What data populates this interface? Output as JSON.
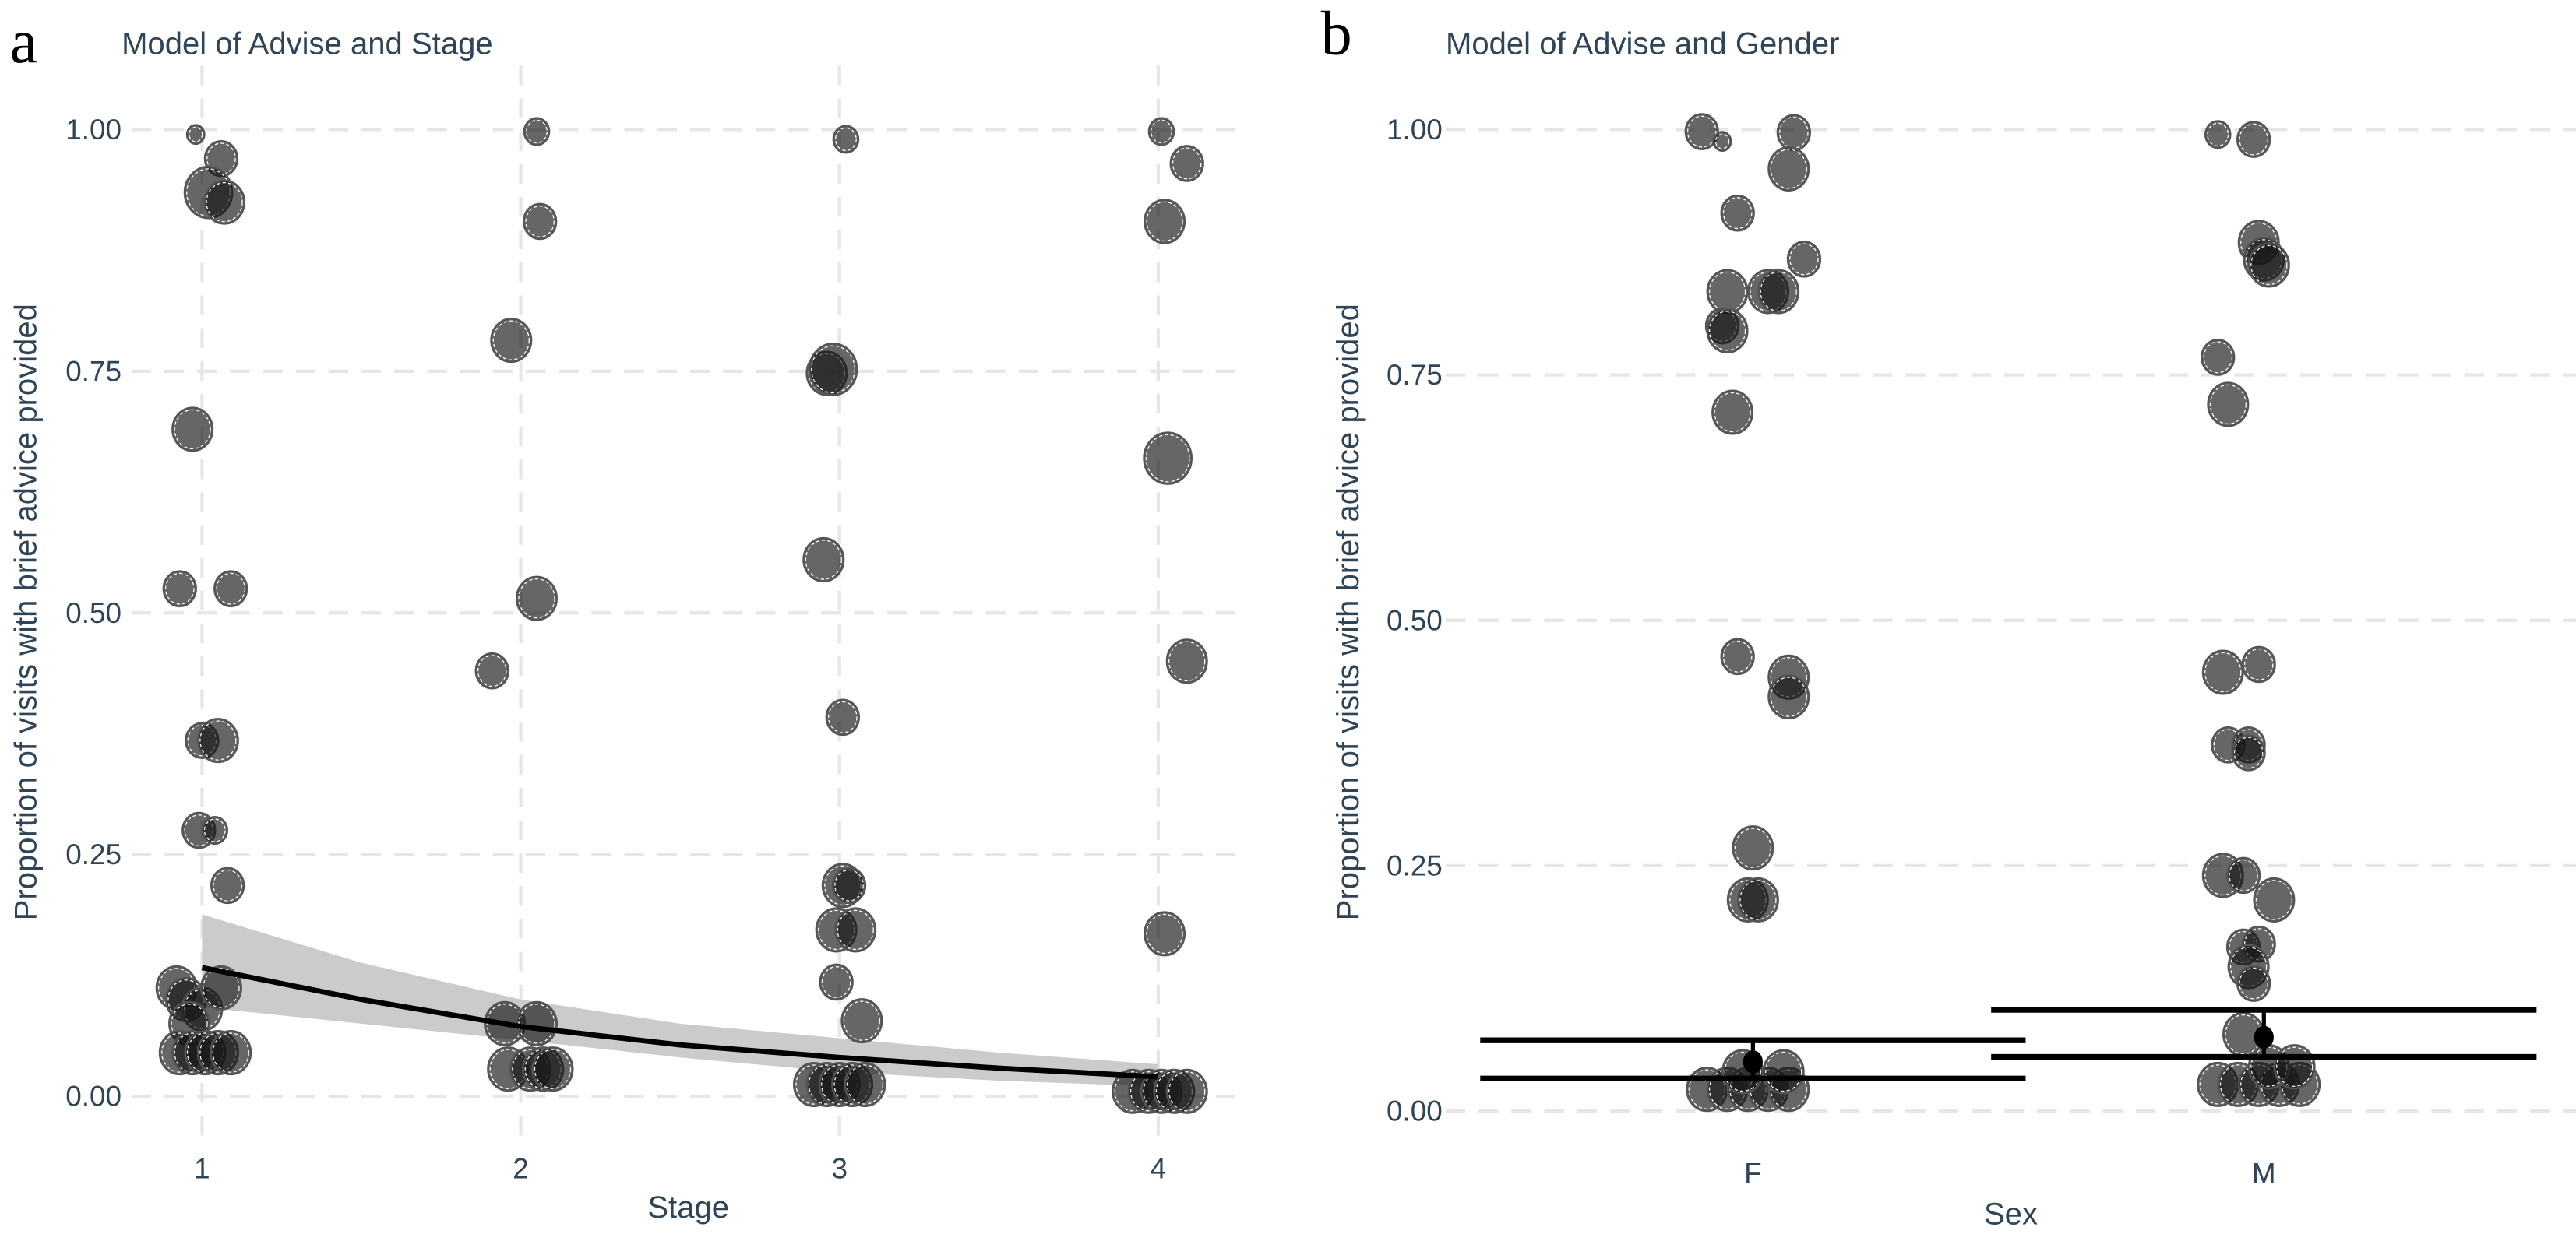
{
  "figure": {
    "panels": [
      {
        "label": "a",
        "title": "Model of Advise and Stage"
      },
      {
        "label": "b",
        "title": "Model of Advise and Gender"
      }
    ]
  },
  "chart_data": [
    {
      "type": "scatter",
      "panel": "a",
      "title": "Model of Advise and Stage",
      "xlabel": "Stage",
      "ylabel": "Proportion of visits with brief advice provided",
      "x_ticks": [
        "1",
        "2",
        "3",
        "4"
      ],
      "y_ticks": [
        "0.00",
        "0.25",
        "0.50",
        "0.75",
        "1.00"
      ],
      "xlim": [
        0.75,
        4.25
      ],
      "ylim": [
        -0.05,
        1.05
      ],
      "grid": true,
      "points": [
        {
          "x": 0.98,
          "y": 0.995,
          "size": 1
        },
        {
          "x": 1.06,
          "y": 0.97,
          "size": 3
        },
        {
          "x": 1.02,
          "y": 0.935,
          "size": 5
        },
        {
          "x": 1.07,
          "y": 0.925,
          "size": 4
        },
        {
          "x": 0.97,
          "y": 0.69,
          "size": 4
        },
        {
          "x": 0.93,
          "y": 0.525,
          "size": 3
        },
        {
          "x": 1.09,
          "y": 0.525,
          "size": 3
        },
        {
          "x": 1.0,
          "y": 0.368,
          "size": 3
        },
        {
          "x": 1.05,
          "y": 0.368,
          "size": 4
        },
        {
          "x": 0.99,
          "y": 0.275,
          "size": 3
        },
        {
          "x": 1.04,
          "y": 0.275,
          "size": 2
        },
        {
          "x": 1.08,
          "y": 0.218,
          "size": 3
        },
        {
          "x": 0.92,
          "y": 0.112,
          "size": 4
        },
        {
          "x": 0.95,
          "y": 0.1,
          "size": 4
        },
        {
          "x": 1.0,
          "y": 0.09,
          "size": 4
        },
        {
          "x": 1.06,
          "y": 0.112,
          "size": 4
        },
        {
          "x": 0.96,
          "y": 0.075,
          "size": 4
        },
        {
          "x": 0.93,
          "y": 0.045,
          "size": 4
        },
        {
          "x": 0.97,
          "y": 0.045,
          "size": 4
        },
        {
          "x": 1.01,
          "y": 0.045,
          "size": 4
        },
        {
          "x": 1.05,
          "y": 0.045,
          "size": 4
        },
        {
          "x": 1.09,
          "y": 0.045,
          "size": 4
        },
        {
          "x": 2.05,
          "y": 0.998,
          "size": 2
        },
        {
          "x": 2.06,
          "y": 0.905,
          "size": 3
        },
        {
          "x": 1.97,
          "y": 0.782,
          "size": 4
        },
        {
          "x": 2.05,
          "y": 0.515,
          "size": 4
        },
        {
          "x": 1.91,
          "y": 0.44,
          "size": 3
        },
        {
          "x": 1.95,
          "y": 0.075,
          "size": 4
        },
        {
          "x": 2.05,
          "y": 0.075,
          "size": 4
        },
        {
          "x": 1.96,
          "y": 0.028,
          "size": 4
        },
        {
          "x": 2.03,
          "y": 0.028,
          "size": 4
        },
        {
          "x": 2.07,
          "y": 0.028,
          "size": 4
        },
        {
          "x": 2.1,
          "y": 0.028,
          "size": 4
        },
        {
          "x": 3.02,
          "y": 0.99,
          "size": 2
        },
        {
          "x": 2.96,
          "y": 0.748,
          "size": 4
        },
        {
          "x": 2.98,
          "y": 0.752,
          "size": 5
        },
        {
          "x": 2.95,
          "y": 0.555,
          "size": 4
        },
        {
          "x": 3.01,
          "y": 0.392,
          "size": 3
        },
        {
          "x": 3.01,
          "y": 0.218,
          "size": 4
        },
        {
          "x": 3.03,
          "y": 0.218,
          "size": 3
        },
        {
          "x": 2.99,
          "y": 0.172,
          "size": 4
        },
        {
          "x": 3.05,
          "y": 0.172,
          "size": 4
        },
        {
          "x": 2.99,
          "y": 0.118,
          "size": 3
        },
        {
          "x": 3.07,
          "y": 0.078,
          "size": 4
        },
        {
          "x": 2.92,
          "y": 0.012,
          "size": 4
        },
        {
          "x": 2.96,
          "y": 0.012,
          "size": 4
        },
        {
          "x": 3.0,
          "y": 0.012,
          "size": 4
        },
        {
          "x": 3.04,
          "y": 0.012,
          "size": 4
        },
        {
          "x": 3.08,
          "y": 0.012,
          "size": 4
        },
        {
          "x": 4.01,
          "y": 0.998,
          "size": 2
        },
        {
          "x": 4.09,
          "y": 0.965,
          "size": 3
        },
        {
          "x": 4.02,
          "y": 0.905,
          "size": 4
        },
        {
          "x": 4.03,
          "y": 0.66,
          "size": 5
        },
        {
          "x": 4.09,
          "y": 0.45,
          "size": 4
        },
        {
          "x": 4.02,
          "y": 0.168,
          "size": 4
        },
        {
          "x": 3.92,
          "y": 0.005,
          "size": 4
        },
        {
          "x": 3.97,
          "y": 0.005,
          "size": 4
        },
        {
          "x": 4.01,
          "y": 0.005,
          "size": 4
        },
        {
          "x": 4.05,
          "y": 0.005,
          "size": 4
        },
        {
          "x": 4.09,
          "y": 0.005,
          "size": 4
        }
      ],
      "fit_line": {
        "x": [
          1,
          1.5,
          2,
          2.5,
          3,
          3.5,
          4
        ],
        "y": [
          0.133,
          0.1,
          0.072,
          0.053,
          0.04,
          0.029,
          0.02
        ],
        "ci_low": [
          0.092,
          0.075,
          0.058,
          0.04,
          0.025,
          0.016,
          0.01
        ],
        "ci_high": [
          0.188,
          0.138,
          0.1,
          0.075,
          0.06,
          0.045,
          0.033
        ]
      }
    },
    {
      "type": "scatter",
      "panel": "b",
      "title": "Model of Advise and Gender",
      "xlabel": "Sex",
      "ylabel": "Proportion of visits with brief advice provided",
      "categories": [
        "F",
        "M"
      ],
      "y_ticks": [
        "0.00",
        "0.25",
        "0.50",
        "0.75",
        "1.00"
      ],
      "ylim": [
        -0.05,
        1.05
      ],
      "grid": true,
      "points": [
        {
          "cat": "F",
          "dx": -0.1,
          "y": 0.998,
          "size": 3
        },
        {
          "cat": "F",
          "dx": -0.06,
          "y": 0.988,
          "size": 1
        },
        {
          "cat": "F",
          "dx": 0.08,
          "y": 0.997,
          "size": 3
        },
        {
          "cat": "F",
          "dx": 0.07,
          "y": 0.96,
          "size": 4
        },
        {
          "cat": "F",
          "dx": -0.03,
          "y": 0.915,
          "size": 3
        },
        {
          "cat": "F",
          "dx": 0.1,
          "y": 0.868,
          "size": 3
        },
        {
          "cat": "F",
          "dx": -0.05,
          "y": 0.835,
          "size": 4
        },
        {
          "cat": "F",
          "dx": 0.03,
          "y": 0.835,
          "size": 4
        },
        {
          "cat": "F",
          "dx": 0.05,
          "y": 0.835,
          "size": 4
        },
        {
          "cat": "F",
          "dx": -0.06,
          "y": 0.8,
          "size": 3
        },
        {
          "cat": "F",
          "dx": -0.05,
          "y": 0.795,
          "size": 4
        },
        {
          "cat": "F",
          "dx": -0.04,
          "y": 0.712,
          "size": 4
        },
        {
          "cat": "F",
          "dx": -0.03,
          "y": 0.463,
          "size": 3
        },
        {
          "cat": "F",
          "dx": 0.07,
          "y": 0.442,
          "size": 4
        },
        {
          "cat": "F",
          "dx": 0.07,
          "y": 0.422,
          "size": 4
        },
        {
          "cat": "F",
          "dx": 0.0,
          "y": 0.268,
          "size": 4
        },
        {
          "cat": "F",
          "dx": -0.01,
          "y": 0.215,
          "size": 4
        },
        {
          "cat": "F",
          "dx": 0.01,
          "y": 0.215,
          "size": 4
        },
        {
          "cat": "F",
          "dx": -0.09,
          "y": 0.022,
          "size": 4
        },
        {
          "cat": "F",
          "dx": -0.05,
          "y": 0.022,
          "size": 4
        },
        {
          "cat": "F",
          "dx": -0.01,
          "y": 0.022,
          "size": 4
        },
        {
          "cat": "F",
          "dx": 0.03,
          "y": 0.022,
          "size": 4
        },
        {
          "cat": "F",
          "dx": 0.07,
          "y": 0.022,
          "size": 4
        },
        {
          "cat": "F",
          "dx": -0.02,
          "y": 0.04,
          "size": 4
        },
        {
          "cat": "F",
          "dx": 0.06,
          "y": 0.04,
          "size": 4
        },
        {
          "cat": "M",
          "dx": -0.09,
          "y": 0.995,
          "size": 2
        },
        {
          "cat": "M",
          "dx": -0.02,
          "y": 0.99,
          "size": 3
        },
        {
          "cat": "M",
          "dx": -0.01,
          "y": 0.885,
          "size": 4
        },
        {
          "cat": "M",
          "dx": 0.0,
          "y": 0.868,
          "size": 4
        },
        {
          "cat": "M",
          "dx": 0.01,
          "y": 0.862,
          "size": 4
        },
        {
          "cat": "M",
          "dx": -0.09,
          "y": 0.768,
          "size": 3
        },
        {
          "cat": "M",
          "dx": -0.07,
          "y": 0.72,
          "size": 4
        },
        {
          "cat": "M",
          "dx": -0.08,
          "y": 0.447,
          "size": 4
        },
        {
          "cat": "M",
          "dx": -0.01,
          "y": 0.455,
          "size": 3
        },
        {
          "cat": "M",
          "dx": -0.07,
          "y": 0.373,
          "size": 3
        },
        {
          "cat": "M",
          "dx": -0.03,
          "y": 0.373,
          "size": 3
        },
        {
          "cat": "M",
          "dx": -0.03,
          "y": 0.365,
          "size": 3
        },
        {
          "cat": "M",
          "dx": -0.08,
          "y": 0.24,
          "size": 4
        },
        {
          "cat": "M",
          "dx": -0.04,
          "y": 0.24,
          "size": 3
        },
        {
          "cat": "M",
          "dx": 0.02,
          "y": 0.215,
          "size": 4
        },
        {
          "cat": "M",
          "dx": -0.04,
          "y": 0.167,
          "size": 3
        },
        {
          "cat": "M",
          "dx": -0.01,
          "y": 0.17,
          "size": 3
        },
        {
          "cat": "M",
          "dx": -0.03,
          "y": 0.147,
          "size": 4
        },
        {
          "cat": "M",
          "dx": -0.02,
          "y": 0.13,
          "size": 3
        },
        {
          "cat": "M",
          "dx": -0.04,
          "y": 0.078,
          "size": 4
        },
        {
          "cat": "M",
          "dx": -0.09,
          "y": 0.027,
          "size": 4
        },
        {
          "cat": "M",
          "dx": -0.05,
          "y": 0.027,
          "size": 4
        },
        {
          "cat": "M",
          "dx": -0.01,
          "y": 0.027,
          "size": 4
        },
        {
          "cat": "M",
          "dx": 0.03,
          "y": 0.027,
          "size": 4
        },
        {
          "cat": "M",
          "dx": 0.07,
          "y": 0.027,
          "size": 4
        },
        {
          "cat": "M",
          "dx": 0.01,
          "y": 0.045,
          "size": 4
        },
        {
          "cat": "M",
          "dx": 0.06,
          "y": 0.045,
          "size": 4
        }
      ],
      "estimates": [
        {
          "cat": "F",
          "mean": 0.05,
          "ci_low": 0.033,
          "ci_high": 0.072
        },
        {
          "cat": "M",
          "mean": 0.075,
          "ci_low": 0.055,
          "ci_high": 0.103
        }
      ]
    }
  ]
}
